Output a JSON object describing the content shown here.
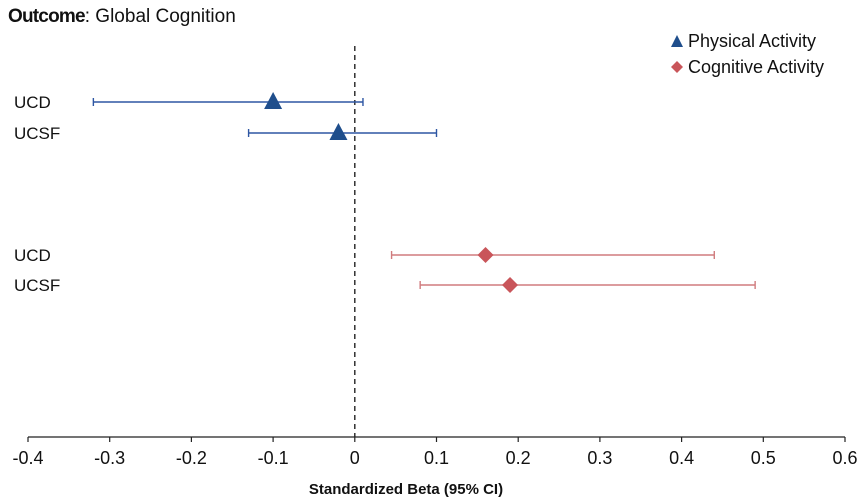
{
  "title_lead": "Outcome",
  "title_rest": ": Global Cognition",
  "legend": [
    {
      "label": "Physical Activity",
      "marker": "triangle",
      "color": "#1f4e8c"
    },
    {
      "label": "Cognitive Activity",
      "marker": "diamond",
      "color": "#c9555a"
    }
  ],
  "chart_data": {
    "type": "forest",
    "xlabel": "Standardized Beta (95% CI)",
    "xlim": [
      -0.4,
      0.6
    ],
    "xticks": [
      "-0.4",
      "-0.3",
      "-0.2",
      "-0.1",
      "0",
      "0.1",
      "0.2",
      "0.3",
      "0.4",
      "0.5",
      "0.6"
    ],
    "reference_line": 0,
    "series": [
      {
        "name": "Physical Activity",
        "color": "#2e56a3",
        "marker_color": "#1f4e8c",
        "marker": "triangle",
        "rows": [
          {
            "label": "UCD",
            "beta": -0.1,
            "lo": -0.32,
            "hi": 0.01
          },
          {
            "label": "UCSF",
            "beta": -0.02,
            "lo": -0.13,
            "hi": 0.1
          }
        ]
      },
      {
        "name": "Cognitive Activity",
        "color": "#d07c7e",
        "marker_color": "#c9555a",
        "marker": "diamond",
        "rows": [
          {
            "label": "UCD",
            "beta": 0.16,
            "lo": 0.045,
            "hi": 0.44
          },
          {
            "label": "UCSF",
            "beta": 0.19,
            "lo": 0.08,
            "hi": 0.49
          }
        ]
      }
    ]
  }
}
